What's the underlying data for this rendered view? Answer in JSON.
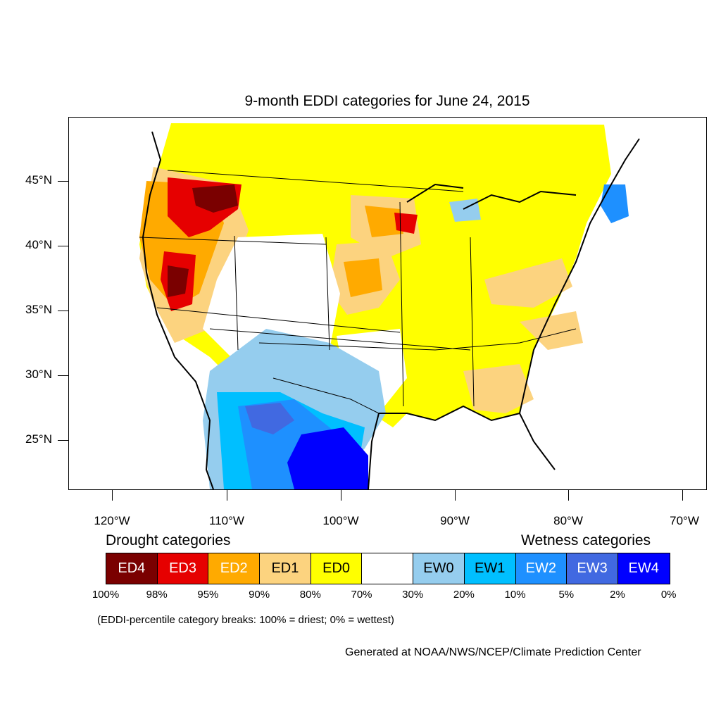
{
  "title": "9-month EDDI categories for June 24, 2015",
  "axes": {
    "lat_labels": [
      "45°N",
      "40°N",
      "35°N",
      "30°N",
      "25°N"
    ],
    "lon_labels": [
      "120°W",
      "110°W",
      "100°W",
      "90°W",
      "80°W",
      "70°W"
    ]
  },
  "legend": {
    "drought_heading": "Drought categories",
    "wetness_heading": "Wetness categories",
    "categories": [
      {
        "label": "ED4",
        "color": "#7a0000",
        "text_color": "#ffffff"
      },
      {
        "label": "ED3",
        "color": "#e60000",
        "text_color": "#ffffff"
      },
      {
        "label": "ED2",
        "color": "#ffaa00",
        "text_color": "#ffffff"
      },
      {
        "label": "ED1",
        "color": "#fcd37f",
        "text_color": "#000000"
      },
      {
        "label": "ED0",
        "color": "#ffff00",
        "text_color": "#000000"
      },
      {
        "label": "",
        "color": "#ffffff",
        "text_color": "#000000"
      },
      {
        "label": "EW0",
        "color": "#95cdee",
        "text_color": "#000000"
      },
      {
        "label": "EW1",
        "color": "#00bfff",
        "text_color": "#000000"
      },
      {
        "label": "EW2",
        "color": "#1e90ff",
        "text_color": "#ffffff"
      },
      {
        "label": "EW3",
        "color": "#4169e1",
        "text_color": "#ffffff"
      },
      {
        "label": "EW4",
        "color": "#0000ff",
        "text_color": "#ffffff"
      }
    ],
    "breaks": [
      "100%",
      "98%",
      "95%",
      "90%",
      "80%",
      "70%",
      "30%",
      "20%",
      "10%",
      "5%",
      "2%",
      "0%"
    ]
  },
  "note": "(EDDI-percentile category breaks: 100% = driest; 0% = wettest)",
  "credit": "Generated at NOAA/NWS/NCEP/Climate Prediction Center"
}
